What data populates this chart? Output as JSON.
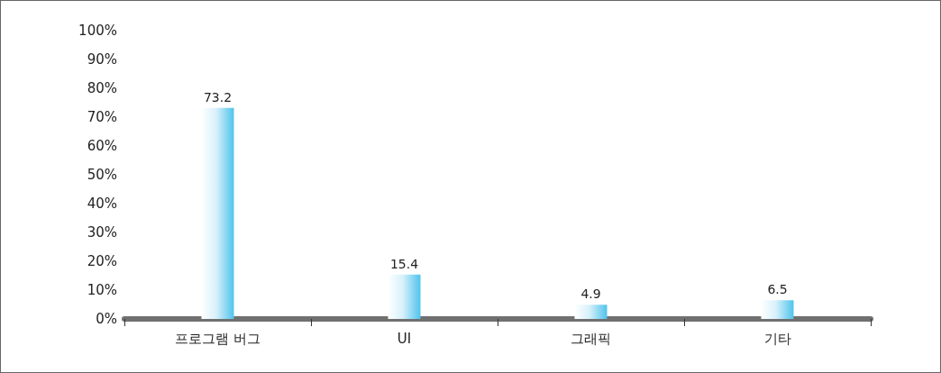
{
  "chart_data": {
    "type": "bar",
    "categories": [
      "프로그램 버그",
      "UI",
      "그래픽",
      "기타"
    ],
    "values": [
      73.2,
      15.4,
      4.9,
      6.5
    ],
    "color": "#4fc3ec",
    "data_labels": true,
    "grid": false,
    "ylim": [
      0,
      100
    ],
    "yticks": [
      {
        "value": 0,
        "label": "0%"
      },
      {
        "value": 10,
        "label": "10%"
      },
      {
        "value": 20,
        "label": "20%"
      },
      {
        "value": 30,
        "label": "30%"
      },
      {
        "value": 40,
        "label": "40%"
      },
      {
        "value": 50,
        "label": "50%"
      },
      {
        "value": 60,
        "label": "60%"
      },
      {
        "value": 70,
        "label": "70%"
      },
      {
        "value": 80,
        "label": "80%"
      },
      {
        "value": 90,
        "label": "90%"
      },
      {
        "value": 100,
        "label": "100%"
      }
    ]
  }
}
